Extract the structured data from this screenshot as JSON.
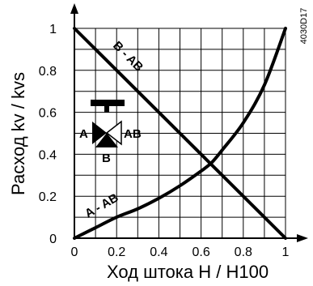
{
  "chart_data": {
    "type": "line",
    "title": "",
    "xlabel": "Ход штока H / H100",
    "ylabel": "Расход kv / kvs",
    "xlim": [
      0,
      1
    ],
    "ylim": [
      0,
      1
    ],
    "grid": true,
    "x_ticks": [
      "0",
      "0.2",
      "0.4",
      "0.6",
      "0.8",
      "1"
    ],
    "y_ticks": [
      "0",
      "0.2",
      "0.4",
      "0.6",
      "0.8",
      "1"
    ],
    "series": [
      {
        "name": "B - AB",
        "x": [
          0,
          1
        ],
        "y": [
          1,
          0
        ]
      },
      {
        "name": "A - AB",
        "x": [
          0,
          0.1,
          0.2,
          0.3,
          0.4,
          0.5,
          0.6,
          0.65,
          0.7,
          0.8,
          0.9,
          1.0
        ],
        "y": [
          0,
          0.05,
          0.1,
          0.14,
          0.19,
          0.25,
          0.32,
          0.36,
          0.42,
          0.55,
          0.73,
          1.0
        ]
      }
    ],
    "valve_labels": {
      "a": "A",
      "ab": "AB",
      "b": "B"
    },
    "doc_id": "4030D17"
  }
}
